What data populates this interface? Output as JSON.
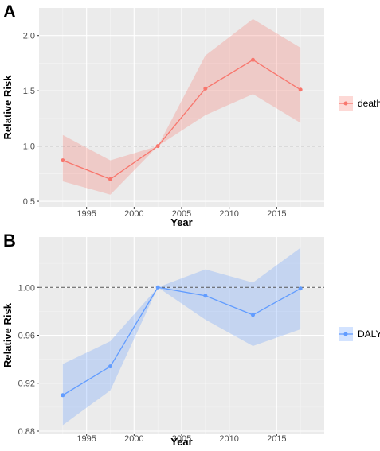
{
  "chart_data": [
    {
      "panel_label": "A",
      "type": "line",
      "x": [
        1992.5,
        1997.5,
        2002.5,
        2007.5,
        2012.5,
        2017.5
      ],
      "series": [
        {
          "name": "death",
          "values": [
            0.87,
            0.7,
            1.0,
            1.52,
            1.78,
            1.51
          ],
          "lower": [
            0.68,
            0.56,
            1.0,
            1.28,
            1.47,
            1.21
          ],
          "upper": [
            1.1,
            0.87,
            1.0,
            1.82,
            2.15,
            1.89
          ],
          "color": "#F8766D"
        }
      ],
      "reference_line": 1.0,
      "xlabel": "Year",
      "ylabel": "Relative Risk",
      "xlim": [
        1990,
        2020
      ],
      "ylim": [
        0.45,
        2.25
      ],
      "xticks": [
        1995,
        2000,
        2005,
        2010,
        2015
      ],
      "yticks": [
        0.5,
        1.0,
        1.5,
        2.0
      ],
      "ytick_labels": [
        "0.5",
        "1.0",
        "1.5",
        "2.0"
      ],
      "legend": {
        "placement": "right",
        "label": "death"
      },
      "grid": true
    },
    {
      "panel_label": "B",
      "type": "line",
      "x": [
        1992.5,
        1997.5,
        2002.5,
        2007.5,
        2012.5,
        2017.5
      ],
      "series": [
        {
          "name": "DALY",
          "values": [
            0.91,
            0.934,
            1.0,
            0.993,
            0.977,
            0.999
          ],
          "lower": [
            0.885,
            0.914,
            1.0,
            0.973,
            0.951,
            0.965
          ],
          "upper": [
            0.936,
            0.955,
            1.0,
            1.015,
            1.004,
            1.033
          ],
          "color": "#619CFF"
        }
      ],
      "reference_line": 1.0,
      "xlabel": "Year",
      "ylabel": "Relative Risk",
      "xlim": [
        1990,
        2020
      ],
      "ylim": [
        0.878,
        1.042
      ],
      "xticks": [
        1995,
        2000,
        2005,
        2010,
        2015
      ],
      "yticks": [
        0.88,
        0.92,
        0.96,
        1.0
      ],
      "ytick_labels": [
        "0.88",
        "0.92",
        "0.96",
        "1.00"
      ],
      "legend": {
        "placement": "right",
        "label": "DALY"
      },
      "grid": true
    }
  ],
  "colors": {
    "panel_background": "#EBEBEB",
    "grid_major": "#FFFFFF",
    "reference_line": "#555555"
  }
}
